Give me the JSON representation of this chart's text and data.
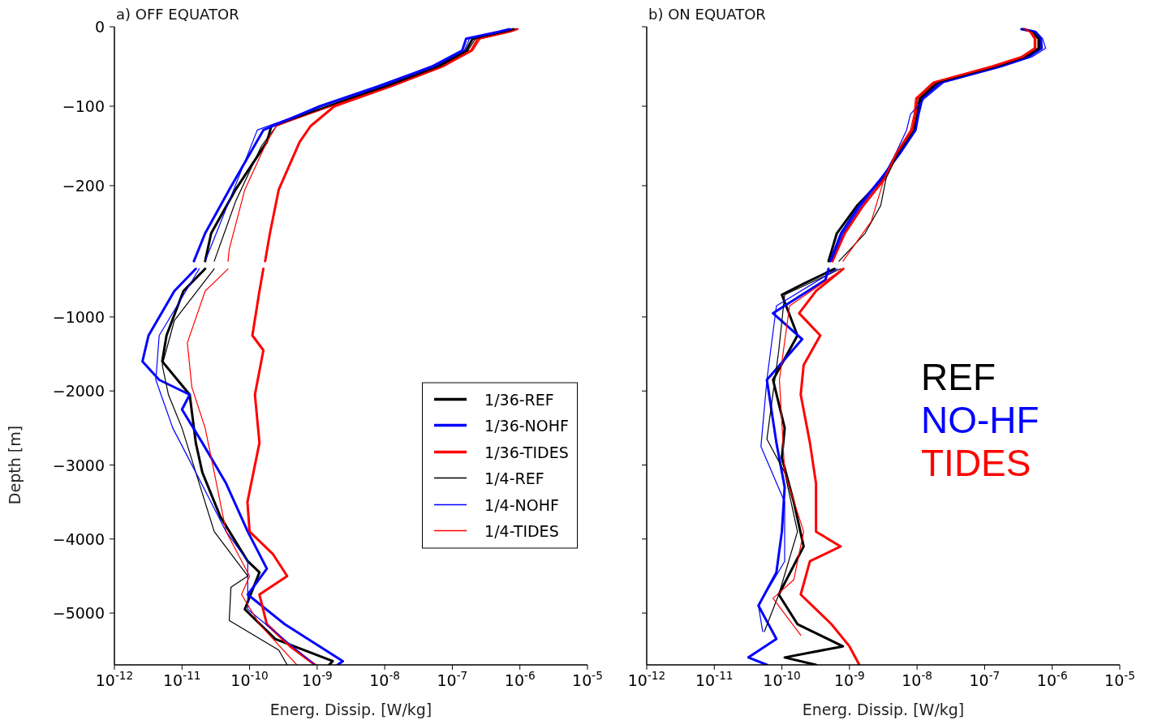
{
  "chart_data": [
    {
      "type": "line",
      "title": "a) OFF EQUATOR",
      "log": "x",
      "tick_labels": "y",
      "xlim": [
        1e-12,
        1e-05
      ],
      "xticks": [
        {
          "value": 1e-12,
          "label": null
        },
        {
          "value": 1e-11,
          "label": null
        },
        {
          "value": 1e-10,
          "label": null
        },
        {
          "value": 1e-09,
          "label": null
        },
        {
          "value": 1e-08,
          "label": null
        },
        {
          "value": 1e-07,
          "label": null
        },
        {
          "value": 1e-06,
          "label": null
        },
        {
          "value": 1e-05,
          "label": null
        }
      ],
      "ylim": [
        -300,
        0
      ],
      "yticks": [
        0,
        -100,
        -200
      ],
      "series": [
        {
          "color": "#000000",
          "x": [
            8e-07,
            6e-07,
            2e-07,
            1.6e-07,
            6e-08,
            1e-08,
            1.5e-09,
            2.1e-10,
            1.8e-10,
            6.2e-11,
            2.7e-11,
            2.2e-11
          ],
          "values": [
            -3,
            -6,
            -15,
            -30,
            -50,
            -75,
            -100,
            -125,
            -145,
            -205,
            -260,
            -295
          ]
        },
        {
          "color": "#0000ff",
          "x": [
            7e-07,
            5e-07,
            1.6e-07,
            1.4e-07,
            5e-08,
            8e-09,
            1.1e-09,
            1.6e-10,
            5e-11,
            2.2e-11,
            1.5e-11
          ],
          "values": [
            -3,
            -6,
            -15,
            -30,
            -50,
            -75,
            -100,
            -130,
            -205,
            -260,
            -295
          ]
        },
        {
          "color": "#ff0000",
          "x": [
            9e-07,
            7e-07,
            2.4e-07,
            1.9e-07,
            7e-08,
            1.2e-08,
            1.8e-09,
            8e-10,
            5.5e-10,
            2.7e-10,
            2e-10,
            1.7e-10
          ],
          "values": [
            -3,
            -6,
            -15,
            -30,
            -50,
            -75,
            -100,
            -125,
            -145,
            -205,
            -260,
            -295
          ]
        },
        {
          "color": "#000000",
          "x": [
            8.5e-07,
            6.5e-07,
            2.2e-07,
            1.7e-07,
            6.5e-08,
            1.1e-08,
            1.4e-09,
            2.5e-10,
            1.5e-10,
            6.2e-11,
            3e-11
          ],
          "values": [
            -3,
            -6,
            -15,
            -30,
            -50,
            -75,
            -100,
            -125,
            -150,
            -220,
            -295
          ]
        },
        {
          "color": "#0000ff",
          "x": [
            7.5e-07,
            5.5e-07,
            1.8e-07,
            1.5e-07,
            5.5e-08,
            9e-09,
            1.2e-09,
            1.3e-10,
            8.5e-11,
            2.2e-11
          ],
          "values": [
            -3,
            -6,
            -15,
            -30,
            -50,
            -75,
            -100,
            -130,
            -170,
            -295
          ]
        },
        {
          "color": "#ff0000",
          "x": [
            9.5e-07,
            7.5e-07,
            2.6e-07,
            2e-07,
            7.5e-08,
            1.3e-08,
            1.6e-09,
            2.5e-10,
            1.8e-10,
            8.5e-11,
            5e-11,
            4.8e-11
          ],
          "values": [
            -3,
            -6,
            -15,
            -30,
            -50,
            -75,
            -100,
            -125,
            -145,
            -205,
            -280,
            -295
          ]
        }
      ]
    },
    {
      "type": "line",
      "xlabel": "Energ. Dissip. [W/kg]",
      "ylabel": "Depth [m]",
      "log": "x",
      "legend": "right",
      "xlim": [
        1e-12,
        1e-05
      ],
      "xticks": [
        {
          "value": 1e-12,
          "label": "10$^{-12}$"
        },
        {
          "value": 1e-11,
          "label": "10$^{-11}$"
        },
        {
          "value": 1e-10,
          "label": "10$^{-10}$"
        },
        {
          "value": 1e-09,
          "label": "10$^{-9}$"
        },
        {
          "value": 1e-08,
          "label": "10$^{-8}$"
        },
        {
          "value": 1e-07,
          "label": "10$^{-7}$"
        },
        {
          "value": 1e-06,
          "label": "10$^{-6}$"
        },
        {
          "value": 1e-05,
          "label": "10$^{-5}$"
        }
      ],
      "ylim": [
        -5700,
        -300
      ],
      "yticks": [
        -1000,
        -2000,
        -3000,
        -4000,
        -5000
      ],
      "series": [
        {
          "name": "1/36-REF",
          "color": "#000000",
          "x": [
            2.2e-11,
            1.05e-11,
            5.9e-12,
            5.1e-12,
            1.3e-11,
            1.6e-11,
            2e-11,
            3.7e-11,
            9.4e-11,
            1.4e-10,
            8.5e-11,
            2.4e-10,
            1.7e-09,
            1.5e-09
          ],
          "values": [
            -350,
            -650,
            -1250,
            -1600,
            -2050,
            -2700,
            -3100,
            -3700,
            -4300,
            -4450,
            -4950,
            -5350,
            -5650,
            -5700
          ]
        },
        {
          "name": "1/36-NOHF",
          "color": "#0000ff",
          "x": [
            1.6e-11,
            7.7e-12,
            3.2e-12,
            2.6e-12,
            4.6e-12,
            1.3e-11,
            1e-11,
            2e-11,
            4.5e-11,
            9.4e-11,
            1.8e-10,
            9.4e-11,
            3.3e-10,
            2.4e-09,
            2e-09
          ],
          "values": [
            -350,
            -650,
            -1250,
            -1600,
            -1850,
            -2050,
            -2250,
            -2700,
            -3250,
            -3900,
            -4400,
            -4750,
            -5150,
            -5650,
            -5700
          ]
        },
        {
          "name": "1/36-TIDES",
          "color": "#ff0000",
          "x": [
            1.6e-10,
            1.4e-10,
            1.1e-10,
            1.6e-10,
            1.2e-10,
            1.4e-10,
            9.3e-11,
            1e-10,
            2.2e-10,
            3.6e-10,
            1.4e-10,
            1.8e-10,
            4e-10,
            9.3e-10
          ],
          "values": [
            -350,
            -650,
            -1250,
            -1450,
            -2050,
            -2700,
            -3500,
            -3900,
            -4200,
            -4500,
            -4750,
            -5150,
            -5450,
            -5700
          ]
        },
        {
          "name": "1/4-REF",
          "color": "#000000",
          "x": [
            3e-11,
            7.7e-12,
            5.1e-12,
            6.3e-12,
            1e-11,
            1.6e-11,
            3e-11,
            9.4e-11,
            5.3e-11,
            5e-11,
            2.7e-10,
            3.6e-10
          ],
          "values": [
            -350,
            -1050,
            -1650,
            -2050,
            -2500,
            -3100,
            -3900,
            -4500,
            -4650,
            -5100,
            -5500,
            -5700
          ]
        },
        {
          "name": "1/4-NOHF",
          "color": "#0000ff",
          "x": [
            1.8e-11,
            4.6e-12,
            4.1e-12,
            7.3e-12,
            1.6e-11,
            4.5e-11,
            9.4e-11,
            9.4e-11,
            9.3e-10
          ],
          "values": [
            -350,
            -1250,
            -1850,
            -2500,
            -3100,
            -3900,
            -4300,
            -4950,
            -5700
          ]
        },
        {
          "name": "1/4-TIDES",
          "color": "#ff0000",
          "x": [
            4.8e-11,
            2.2e-11,
            1.2e-11,
            1.4e-11,
            2.2e-11,
            3e-11,
            4.5e-11,
            1e-10,
            7.6e-11,
            1.4e-10,
            5e-10
          ],
          "values": [
            -350,
            -650,
            -1350,
            -1950,
            -2500,
            -3100,
            -3900,
            -4500,
            -4750,
            -5150,
            -5700
          ]
        }
      ]
    },
    {
      "type": "line",
      "title": "b) ON EQUATOR",
      "log": "x",
      "tick_labels": false,
      "xlim": [
        1e-12,
        1e-05
      ],
      "xticks": [
        {
          "value": 1e-12,
          "label": null
        },
        {
          "value": 1e-11,
          "label": null
        },
        {
          "value": 1e-10,
          "label": null
        },
        {
          "value": 1e-09,
          "label": null
        },
        {
          "value": 1e-08,
          "label": null
        },
        {
          "value": 1e-07,
          "label": null
        },
        {
          "value": 1e-06,
          "label": null
        },
        {
          "value": 1e-05,
          "label": null
        }
      ],
      "ylim": [
        -300,
        0
      ],
      "yticks": [
        {
          "value": 0,
          "label": null
        },
        {
          "value": -100,
          "label": null
        },
        {
          "value": -200,
          "label": null
        }
      ],
      "series": [
        {
          "color": "#000000",
          "x": [
            3.7e-07,
            5e-07,
            6.3e-07,
            6.3e-07,
            4e-07,
            1.5e-07,
            2e-08,
            1.1e-08,
            1e-08,
            9e-09,
            5.2e-09,
            3.2e-09,
            1.3e-09,
            6.5e-10,
            4.9e-10
          ],
          "values": [
            -3,
            -6,
            -15,
            -27,
            -38,
            -50,
            -70,
            -90,
            -110,
            -130,
            -160,
            -190,
            -225,
            -260,
            -295
          ]
        },
        {
          "color": "#0000ff",
          "x": [
            3.5e-07,
            5.5e-07,
            6.8e-07,
            7e-07,
            4.5e-07,
            1.7e-07,
            2.3e-08,
            1.2e-08,
            1.05e-08,
            9.5e-09,
            5.5e-09,
            3e-09,
            1.4e-09,
            7.5e-10,
            5.2e-10
          ],
          "values": [
            -3,
            -6,
            -15,
            -27,
            -38,
            -50,
            -70,
            -90,
            -110,
            -130,
            -160,
            -190,
            -225,
            -260,
            -295
          ]
        },
        {
          "color": "#ff0000",
          "x": [
            3.9e-07,
            4.8e-07,
            5.6e-07,
            5.6e-07,
            3.6e-07,
            1.3e-07,
            1.8e-08,
            1e-08,
            9.5e-09,
            8.5e-09,
            5e-09,
            3.4e-09,
            1.6e-09,
            8.5e-10,
            5.6e-10
          ],
          "values": [
            -3,
            -6,
            -15,
            -27,
            -38,
            -50,
            -70,
            -90,
            -110,
            -130,
            -160,
            -190,
            -225,
            -260,
            -295
          ]
        },
        {
          "color": "#000000",
          "x": [
            3.6e-07,
            5.2e-07,
            6.5e-07,
            6.6e-07,
            4.2e-07,
            1.6e-07,
            2.1e-08,
            1.15e-08,
            1e-08,
            9e-09,
            5.2e-09,
            3.5e-09,
            2.9e-09,
            1.7e-09,
            7e-10
          ],
          "values": [
            -3,
            -6,
            -15,
            -27,
            -38,
            -50,
            -70,
            -90,
            -110,
            -130,
            -160,
            -190,
            -225,
            -260,
            -295
          ]
        },
        {
          "color": "#0000ff",
          "x": [
            3.8e-07,
            5.8e-07,
            7.2e-07,
            8e-07,
            5e-07,
            1.8e-07,
            2.5e-08,
            1.3e-08,
            8e-09,
            7e-09,
            4.8e-09,
            3.1e-09,
            1.5e-09,
            8e-10,
            5.4e-10
          ],
          "values": [
            -3,
            -6,
            -15,
            -27,
            -38,
            -50,
            -70,
            -90,
            -110,
            -130,
            -160,
            -190,
            -225,
            -260,
            -295
          ]
        },
        {
          "color": "#ff0000",
          "x": [
            4e-07,
            4.6e-07,
            5.4e-07,
            5.4e-07,
            3.4e-07,
            1.25e-07,
            1.7e-08,
            9.5e-09,
            9e-09,
            8e-09,
            4.8e-09,
            3.3e-09,
            2.1e-09,
            8e-10
          ],
          "values": [
            -3,
            -6,
            -15,
            -27,
            -38,
            -50,
            -70,
            -90,
            -110,
            -130,
            -160,
            -190,
            -245,
            -295
          ]
        }
      ]
    },
    {
      "type": "line",
      "xlabel": "Energ. Dissip. [W/kg]",
      "log": "x",
      "tick_labels": "x",
      "annotations": [
        "REF",
        "NO-HF",
        "TIDES"
      ],
      "xlim": [
        1e-12,
        1e-05
      ],
      "xticks": [
        {
          "value": 1e-12,
          "label": "10$^{-12}$"
        },
        {
          "value": 1e-11,
          "label": "10$^{-11}$"
        },
        {
          "value": 1e-10,
          "label": "10$^{-10}$"
        },
        {
          "value": 1e-09,
          "label": "10$^{-9}$"
        },
        {
          "value": 1e-08,
          "label": "10$^{-8}$"
        },
        {
          "value": 1e-07,
          "label": "10$^{-7}$"
        },
        {
          "value": 1e-06,
          "label": "10$^{-6}$"
        },
        {
          "value": 1e-05,
          "label": "10$^{-5}$"
        }
      ],
      "ylim": [
        -5700,
        -300
      ],
      "yticks": [
        {
          "value": -1000,
          "label": null
        },
        {
          "value": -2000,
          "label": null
        },
        {
          "value": -3000,
          "label": null
        },
        {
          "value": -4000,
          "label": null
        },
        {
          "value": -5000,
          "label": null
        }
      ],
      "series": [
        {
          "color": "#000000",
          "x": [
            6e-10,
            2.1e-10,
            1e-10,
            1.7e-10,
            7.4e-11,
            1.1e-10,
            1e-10,
            1.5e-10,
            2.1e-10,
            9e-11,
            1.7e-10,
            8e-10,
            1.1e-10,
            3.2e-10
          ],
          "values": [
            -350,
            -550,
            -700,
            -1250,
            -1850,
            -2500,
            -2900,
            -3500,
            -4100,
            -4750,
            -5150,
            -5450,
            -5600,
            -5700
          ]
        },
        {
          "color": "#0000ff",
          "x": [
            4.9e-10,
            4.4e-10,
            7.4e-11,
            2e-10,
            6e-11,
            8.3e-11,
            1.1e-10,
            1e-10,
            8.3e-11,
            4.5e-11,
            8.3e-11,
            3.2e-11,
            6e-11
          ],
          "values": [
            -350,
            -500,
            -950,
            -1300,
            -1850,
            -2700,
            -3300,
            -3900,
            -4450,
            -4900,
            -5350,
            -5600,
            -5700
          ]
        },
        {
          "color": "#ff0000",
          "x": [
            8.1e-10,
            3.2e-10,
            1.8e-10,
            3.7e-10,
            2.1e-10,
            1.9e-10,
            2.6e-10,
            3.2e-10,
            3.2e-10,
            7.4e-10,
            2.6e-10,
            1.9e-10,
            5.4e-10,
            1e-09,
            1.4e-09
          ],
          "values": [
            -350,
            -650,
            -950,
            -1250,
            -1650,
            -2050,
            -2700,
            -3250,
            -3900,
            -4100,
            -4300,
            -4750,
            -5150,
            -5450,
            -5700
          ]
        },
        {
          "color": "#000000",
          "x": [
            7.4e-10,
            1.1e-10,
            9e-11,
            6e-11,
            1.1e-10,
            1.7e-10,
            9e-11,
            5.5e-11
          ],
          "values": [
            -350,
            -700,
            -1450,
            -2650,
            -3100,
            -3900,
            -4750,
            -5250
          ]
        },
        {
          "color": "#0000ff",
          "x": [
            6.6e-10,
            8.3e-11,
            6e-11,
            4.9e-11,
            1.1e-10,
            1.1e-10,
            4.5e-11,
            5.2e-11
          ],
          "values": [
            -350,
            -850,
            -1850,
            -2750,
            -3500,
            -4300,
            -4900,
            -5250
          ]
        },
        {
          "color": "#ff0000",
          "x": [
            8.1e-10,
            1.3e-10,
            9.2e-11,
            1.1e-10,
            2.1e-10,
            1.5e-10,
            7.4e-11,
            1.9e-10
          ],
          "values": [
            -350,
            -850,
            -1850,
            -3100,
            -3900,
            -4550,
            -4800,
            -5300
          ]
        }
      ]
    }
  ]
}
